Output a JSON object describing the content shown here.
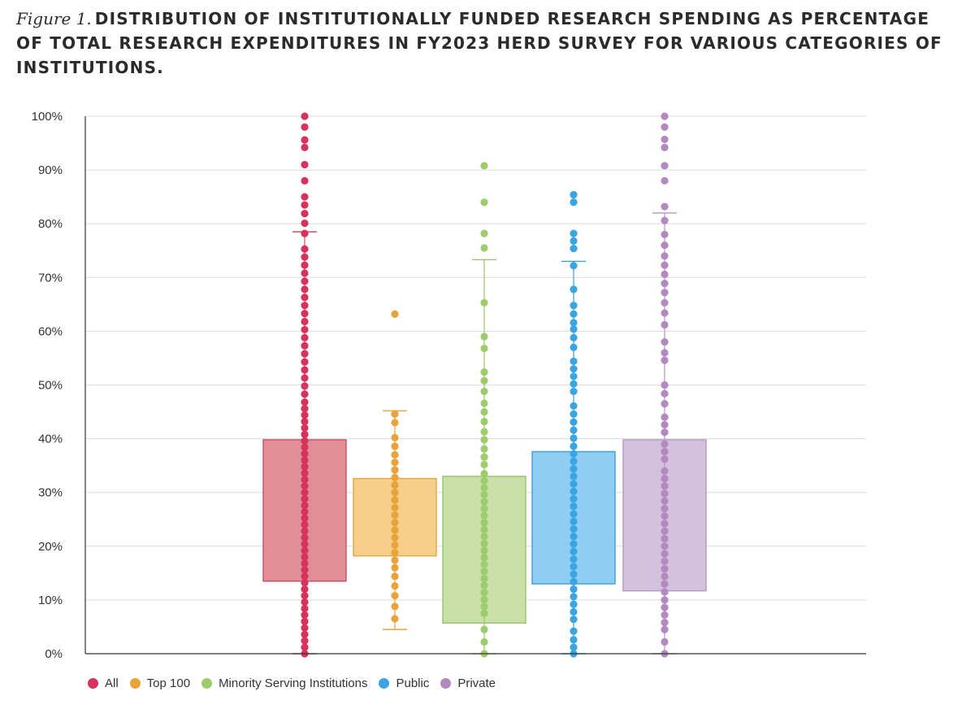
{
  "figure": {
    "label": "Figure 1.",
    "title": "DISTRIBUTION OF INSTITUTIONALLY FUNDED RESEARCH SPENDING AS PERCENTAGE OF TOTAL RESEARCH EXPENDITURES IN FY2023 HERD SURVEY FOR VARIOUS CATEGORIES OF INSTITUTIONS."
  },
  "chart_data": {
    "type": "box",
    "title": "DISTRIBUTION OF INSTITUTIONALLY FUNDED RESEARCH SPENDING AS PERCENTAGE OF TOTAL RESEARCH EXPENDITURES IN FY2023 HERD SURVEY FOR VARIOUS CATEGORIES OF INSTITUTIONS.",
    "xlabel": "",
    "ylabel": "",
    "ylim": [
      0,
      100
    ],
    "yticks": [
      "0%",
      "10%",
      "20%",
      "30%",
      "40%",
      "50%",
      "60%",
      "70%",
      "80%",
      "90%",
      "100%"
    ],
    "grid": true,
    "legend_position": "bottom-left",
    "series": [
      {
        "name": "All",
        "color": "#d6325c",
        "box_color": "#e08f98",
        "box_edge": "#c94f63",
        "q1": 13.5,
        "q3": 39.8,
        "whisker_low": 0,
        "whisker_high": 78.5,
        "points": [
          0,
          1.2,
          2.4,
          3.6,
          4.8,
          6,
          7.2,
          8.4,
          9.6,
          10.8,
          12,
          13.2,
          14.4,
          15.6,
          16.8,
          18,
          19.2,
          20.4,
          21.6,
          22.8,
          24,
          25.2,
          26.4,
          27.6,
          28.8,
          30,
          31.2,
          32.4,
          33.6,
          34.8,
          36,
          37.2,
          38.4,
          39.6,
          40.8,
          42,
          43.2,
          44.4,
          45.6,
          46.8,
          48.3,
          49.8,
          51.3,
          52.8,
          54.3,
          55.8,
          57.3,
          58.8,
          60.3,
          61.8,
          63.3,
          64.8,
          66.3,
          67.8,
          69.3,
          70.8,
          72.3,
          73.8,
          75.3,
          78.2,
          80.1,
          81.9,
          83.5,
          85,
          88,
          91,
          94.2,
          95.6,
          98,
          100
        ]
      },
      {
        "name": "Top 100",
        "color": "#e8a33a",
        "box_color": "#f7ce8a",
        "box_edge": "#e5a545",
        "q1": 18.2,
        "q3": 32.6,
        "whisker_low": 4.5,
        "whisker_high": 45.2,
        "points": [
          6.5,
          8.8,
          10.8,
          12.6,
          14.4,
          16,
          17.4,
          18.8,
          20.2,
          21.6,
          23,
          24.4,
          25.8,
          27.2,
          28.6,
          30,
          31.4,
          32.8,
          34.2,
          35.6,
          37,
          38.6,
          40.2,
          43,
          44.6,
          63.2
        ]
      },
      {
        "name": "Minority Serving Institutions",
        "color": "#9ecb6b",
        "box_color": "#c9e0a8",
        "box_edge": "#98c46d",
        "q1": 5.7,
        "q3": 33,
        "whisker_low": 0,
        "whisker_high": 73.3,
        "points": [
          0,
          2.2,
          4.5,
          7.5,
          8.8,
          10.1,
          11.4,
          12.7,
          14,
          15.3,
          16.6,
          17.9,
          19.2,
          20.5,
          21.8,
          23.1,
          24.4,
          25.7,
          27,
          28.3,
          29.6,
          30.9,
          32.2,
          33.5,
          35.2,
          36.6,
          38.1,
          39.8,
          41.3,
          43.2,
          45,
          46.6,
          48.8,
          50.8,
          52.4,
          56.8,
          59,
          65.3,
          75.5,
          78.2,
          84,
          90.8
        ]
      },
      {
        "name": "Public",
        "color": "#3aa5e0",
        "box_color": "#8fcdf2",
        "box_edge": "#3e9fd8",
        "q1": 13,
        "q3": 37.6,
        "whisker_low": 0,
        "whisker_high": 73,
        "points": [
          0,
          1.2,
          2.6,
          4.2,
          6.4,
          7.8,
          9.2,
          10.6,
          12,
          13.4,
          14.8,
          16.2,
          17.6,
          19,
          20.4,
          21.8,
          23.2,
          24.6,
          26,
          27.4,
          28.8,
          30.2,
          31.6,
          33,
          34.4,
          35.8,
          37.2,
          38.6,
          40.1,
          41.6,
          43.1,
          44.6,
          46.1,
          48.8,
          50.2,
          51.6,
          53,
          54.4,
          57,
          58.8,
          60.4,
          61.6,
          63.2,
          64.8,
          67.8,
          72.2,
          75.4,
          76.8,
          78.2,
          84,
          85.4
        ]
      },
      {
        "name": "Private",
        "color": "#b489c2",
        "box_color": "#d4c1dd",
        "box_edge": "#b497c2",
        "q1": 11.7,
        "q3": 39.8,
        "whisker_low": 0,
        "whisker_high": 82,
        "points": [
          0,
          2.2,
          4.5,
          5.8,
          7.2,
          8.6,
          10,
          11.5,
          13,
          14.4,
          15.8,
          17.2,
          18.6,
          20,
          21.4,
          22.8,
          24.2,
          25.6,
          27,
          28.4,
          29.8,
          31.2,
          32.6,
          34,
          36.2,
          37.6,
          39,
          41.2,
          42.6,
          44,
          46.5,
          48.4,
          50,
          54.6,
          56,
          58,
          61.2,
          63.4,
          65.3,
          67.2,
          68.9,
          70.6,
          72.3,
          74,
          76,
          78,
          80.6,
          83.2,
          88,
          90.8,
          94.2,
          95.7,
          98,
          100
        ]
      }
    ]
  }
}
